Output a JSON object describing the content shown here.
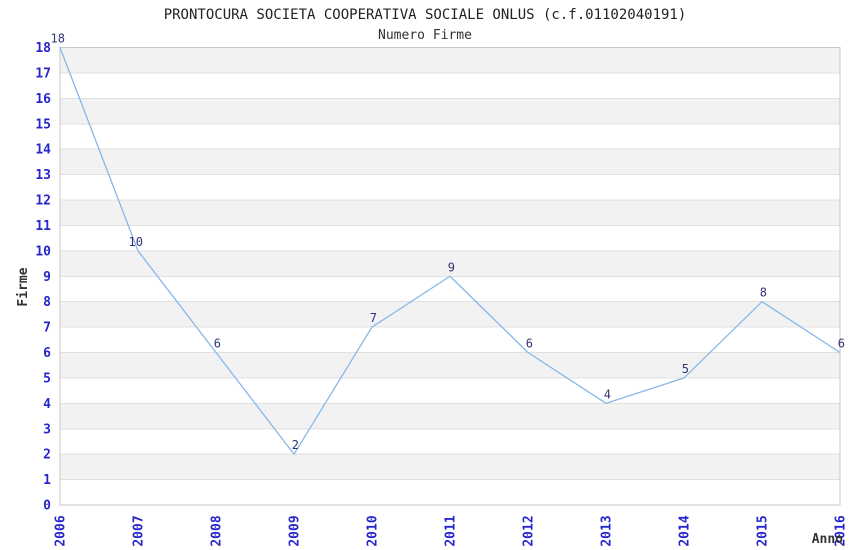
{
  "header": {
    "title": "PRONTOCURA SOCIETA COOPERATIVA SOCIALE ONLUS (c.f.01102040191)",
    "subtitle": "Numero Firme"
  },
  "chart_data": {
    "type": "line",
    "title": "PRONTOCURA SOCIETA COOPERATIVA SOCIALE ONLUS (c.f.01102040191)",
    "subtitle": "Numero Firme",
    "xlabel": "Anno",
    "ylabel": "Firme",
    "categories": [
      "2006",
      "2007",
      "2008",
      "2009",
      "2010",
      "2011",
      "2012",
      "2013",
      "2014",
      "2015",
      "2016"
    ],
    "values": [
      18,
      10,
      6,
      2,
      7,
      9,
      6,
      4,
      5,
      8,
      6
    ],
    "ylim": [
      0,
      18
    ],
    "ytick_step": 1,
    "grid": "alternating-horizontal-bands",
    "legend": "none",
    "colors": {
      "line": "#85b8ea",
      "tick_label": "#2626cc",
      "data_label": "#333377",
      "band_fill": "#f2f2f2",
      "grid_line": "#e0e0e0",
      "plot_border": "#c8c8c8",
      "title": "#222222",
      "axis_label": "#333333",
      "background": "#ffffff"
    }
  }
}
